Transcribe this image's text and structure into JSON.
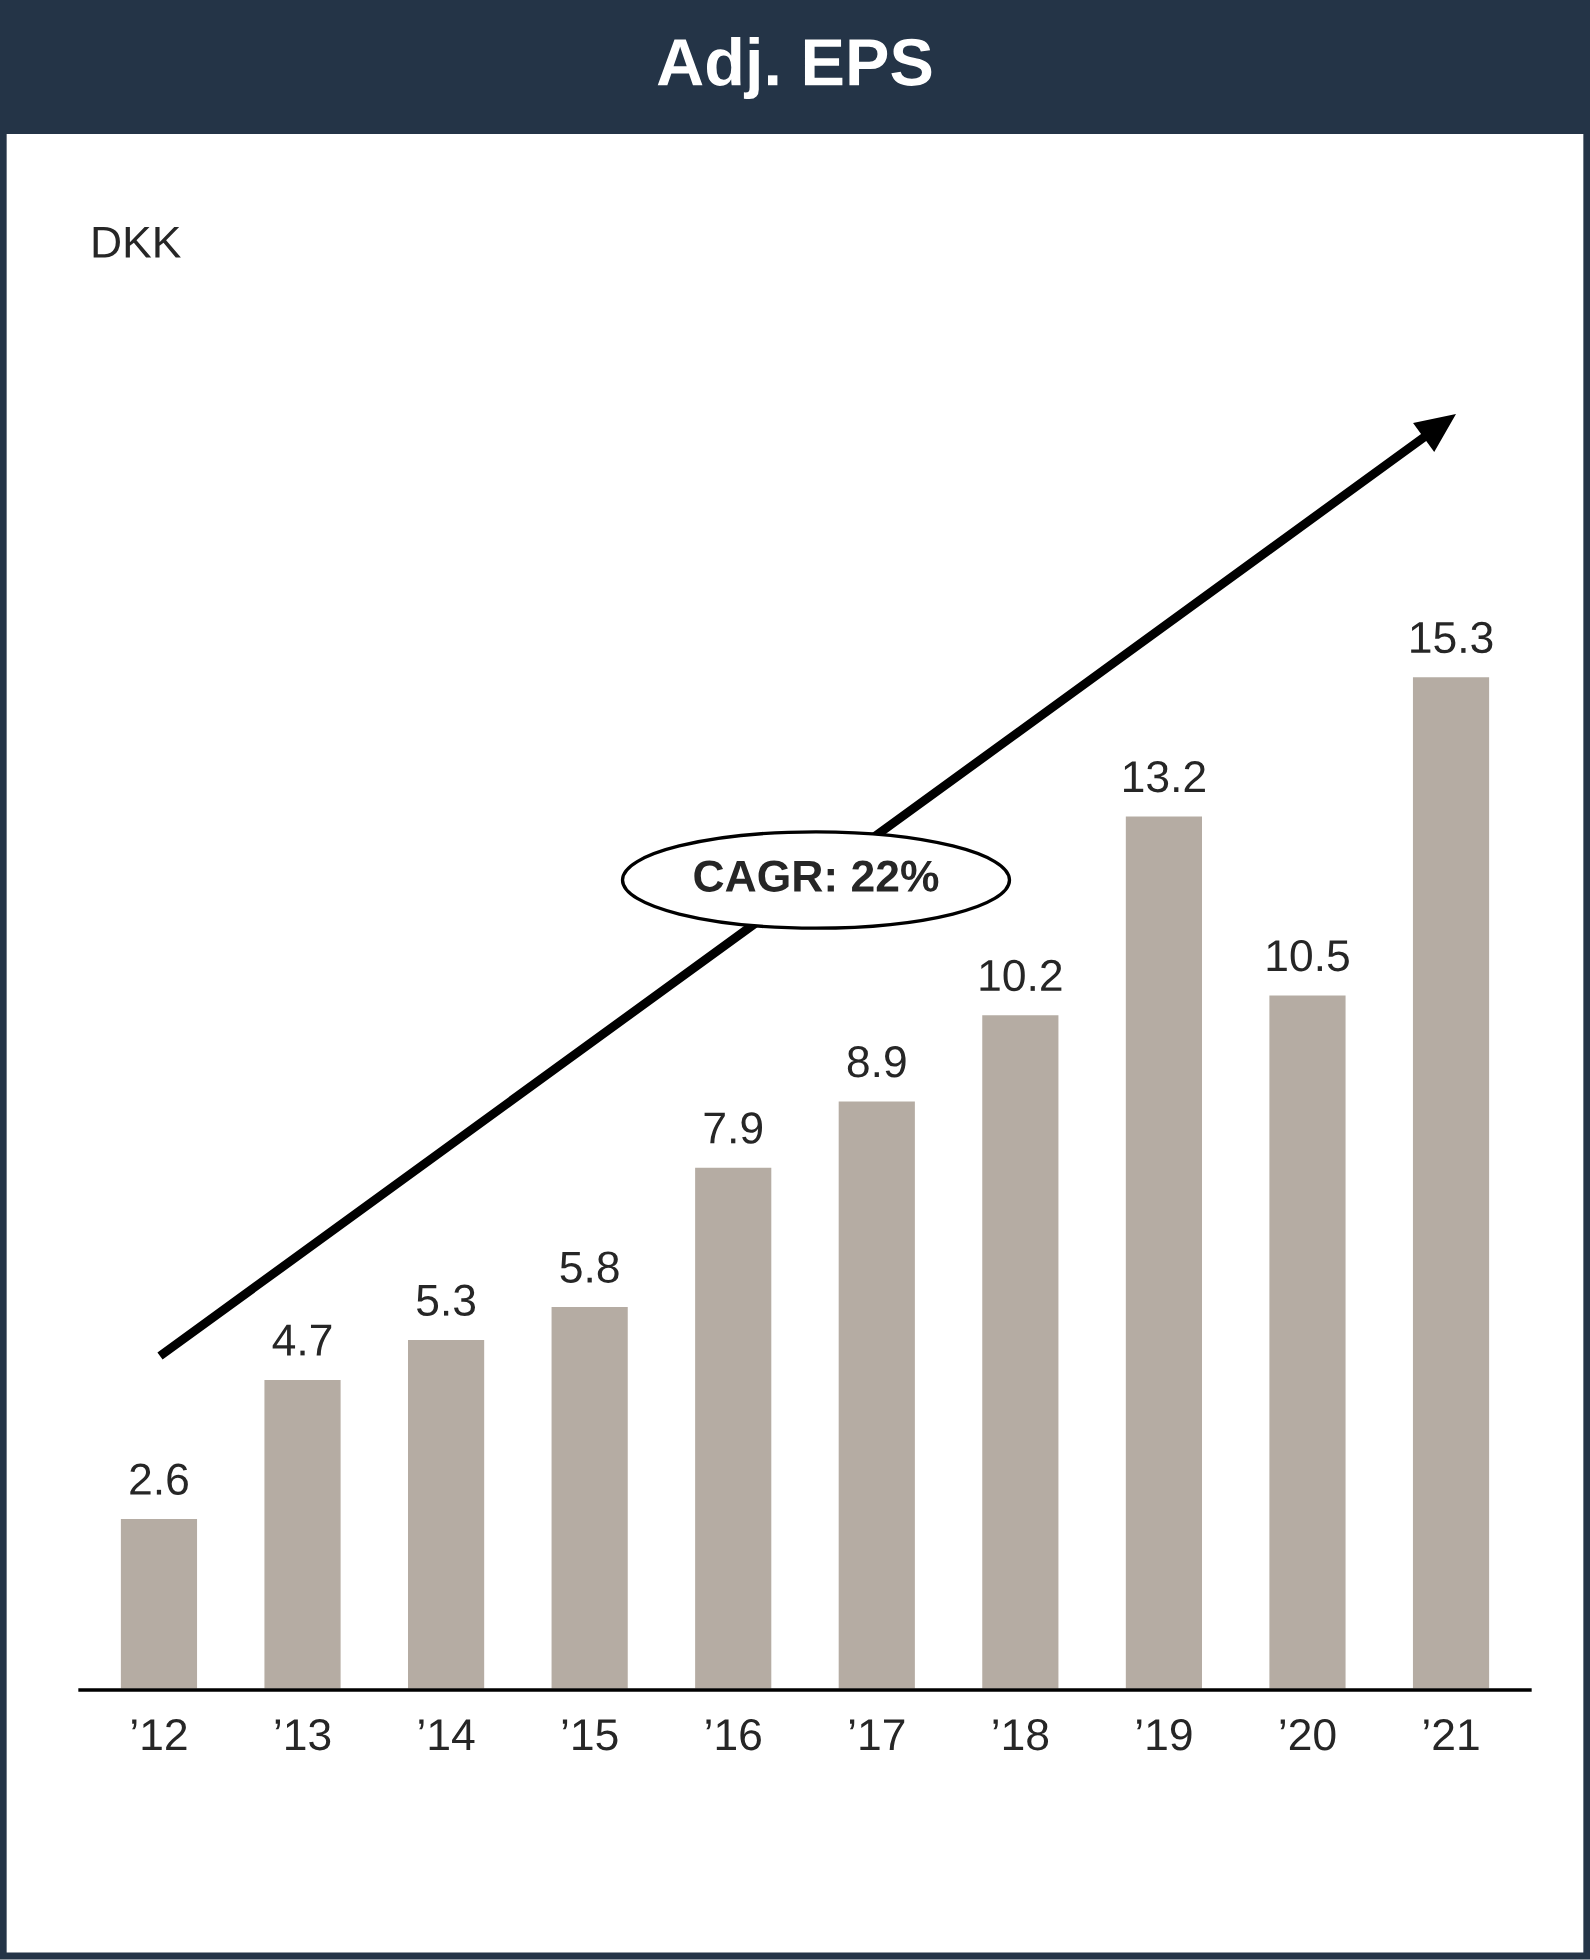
{
  "chart_data": {
    "type": "bar",
    "title": "Adj. EPS",
    "categories": [
      "’12",
      "’13",
      "’14",
      "’15",
      "’16",
      "’17",
      "’18",
      "’19",
      "’20",
      "’21"
    ],
    "values": [
      2.6,
      4.7,
      5.3,
      5.8,
      7.9,
      8.9,
      10.2,
      13.2,
      10.5,
      15.3
    ],
    "color": "#b5aca3",
    "data_labels": true,
    "grid": false,
    "legend": false,
    "annotations": [
      "DKK",
      "CAGR: 22%"
    ]
  }
}
